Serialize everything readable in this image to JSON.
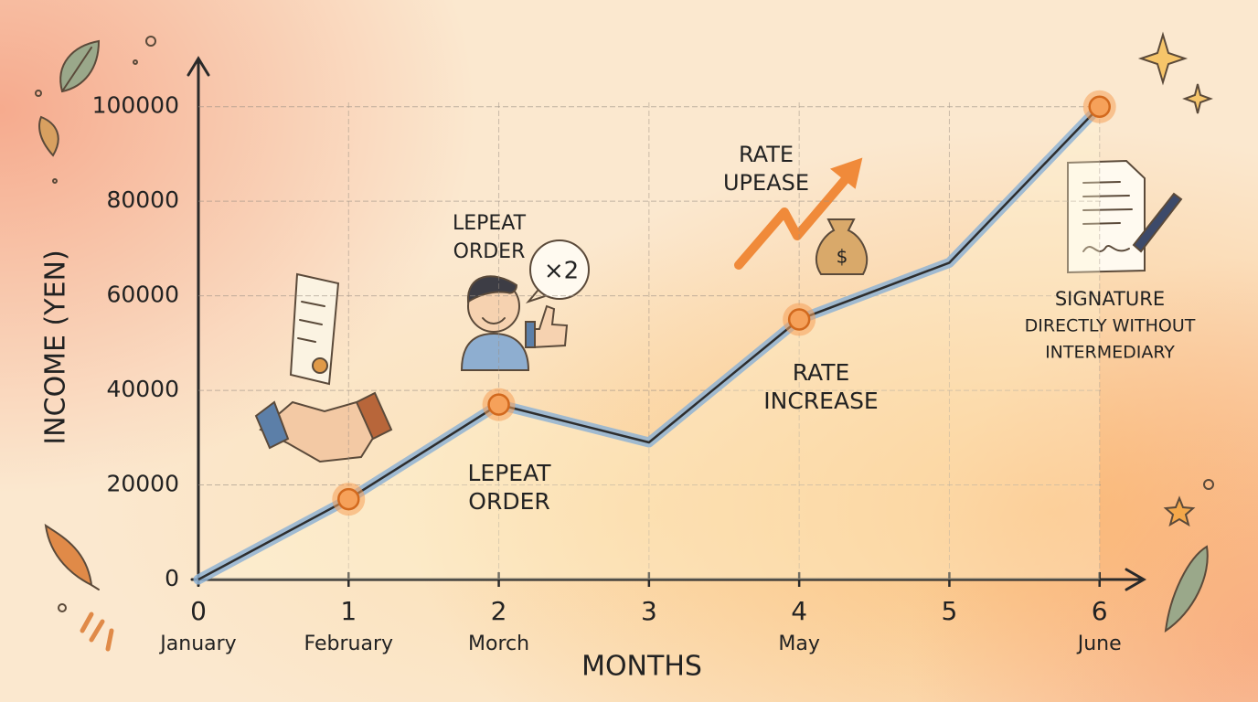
{
  "chart_data": {
    "type": "line",
    "x": [
      0,
      1,
      2,
      3,
      4,
      5,
      6
    ],
    "values": [
      0,
      17000,
      37000,
      29000,
      55000,
      67000,
      100000
    ],
    "color": "#2e2e2e",
    "halo_color": "#8fb3d3",
    "marker_color": "#f6a15a",
    "xlim": [
      0,
      6.3
    ],
    "ylim": [
      0,
      110000
    ],
    "xticks": [
      0,
      1,
      2,
      3,
      4,
      5,
      6
    ],
    "yticks": [
      0,
      20000,
      40000,
      60000,
      80000,
      100000
    ],
    "month_labels": [
      "January",
      "February",
      "Morch",
      null,
      "May",
      null,
      "June"
    ],
    "xlabel": "MONTHS",
    "ylabel": "INCOME (YEN)",
    "grid": true,
    "annotations": [
      {
        "lines": [
          "LEPEAT",
          "ORDER"
        ]
      },
      {
        "text": "×2"
      },
      {
        "lines": [
          "LEPEAT",
          "ORDER"
        ]
      },
      {
        "lines": [
          "RATE",
          "UPEASE"
        ]
      },
      {
        "text": "$"
      },
      {
        "lines": [
          "RATE",
          "INCREASE"
        ]
      },
      {
        "lines": [
          "SIGNATURE",
          "DIRECTLY WITHOUT",
          "INTERMEDIARY"
        ]
      }
    ]
  }
}
